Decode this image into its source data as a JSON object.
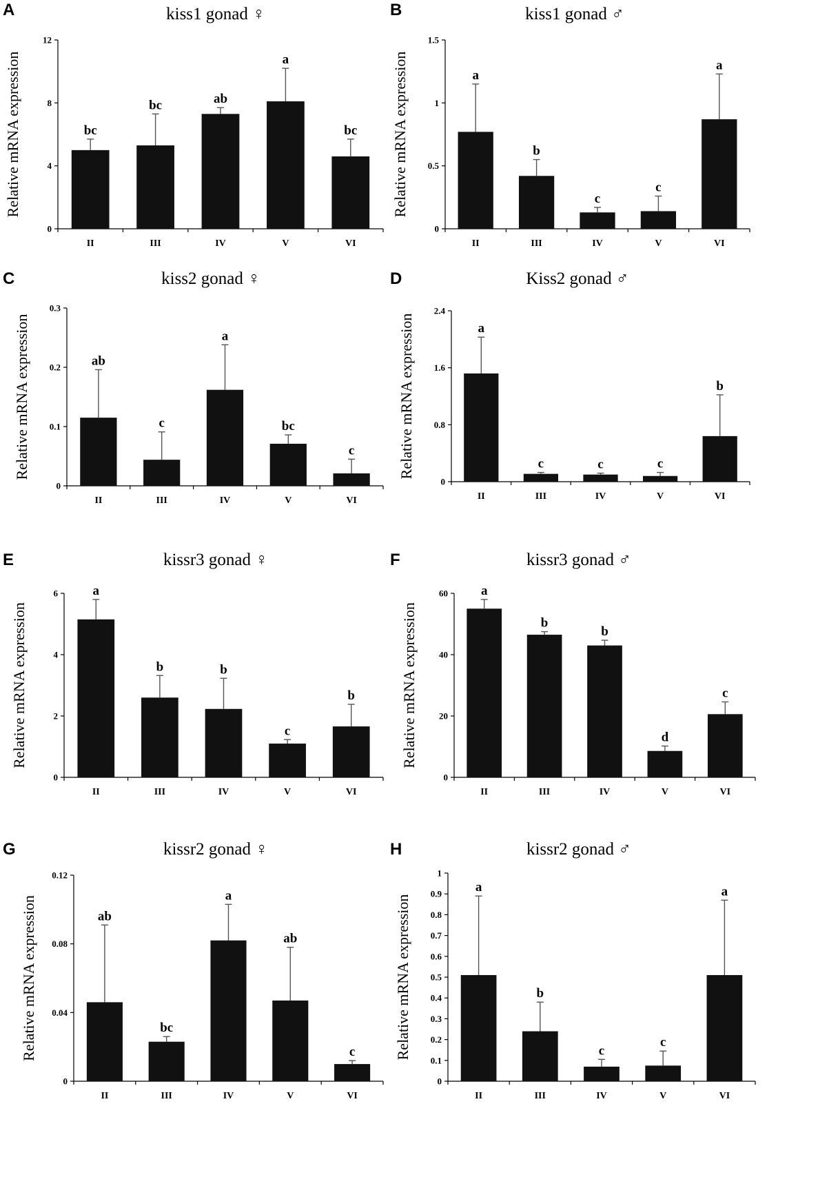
{
  "y_axis_label": "Relative mRNA expression",
  "colors": {
    "bar": "#111111",
    "error": "#555555",
    "axis": "#000000"
  },
  "chart_data": [
    {
      "panel": "A",
      "type": "bar",
      "title": "kiss1 gonad ♀",
      "ylabel": "Relative mRNA expression",
      "categories": [
        "II",
        "III",
        "IV",
        "V",
        "VI"
      ],
      "values": [
        5.0,
        5.3,
        7.3,
        8.1,
        4.6
      ],
      "errors": [
        0.7,
        2.0,
        0.4,
        2.1,
        1.1
      ],
      "labels": [
        "bc",
        "bc",
        "ab",
        "a",
        "bc"
      ],
      "ylim": [
        0,
        12
      ],
      "yticks": [
        "0",
        "4",
        "8",
        "12"
      ]
    },
    {
      "panel": "B",
      "type": "bar",
      "title": "kiss1 gonad ♂",
      "ylabel": "Relative mRNA expression",
      "categories": [
        "II",
        "III",
        "IV",
        "V",
        "VI"
      ],
      "values": [
        0.77,
        0.42,
        0.13,
        0.14,
        0.87
      ],
      "errors": [
        0.38,
        0.13,
        0.04,
        0.12,
        0.36
      ],
      "labels": [
        "a",
        "b",
        "c",
        "c",
        "a"
      ],
      "ylim": [
        0,
        1.5
      ],
      "yticks": [
        "0",
        "0.5",
        "1",
        "1.5"
      ]
    },
    {
      "panel": "C",
      "type": "bar",
      "title": "kiss2 gonad ♀",
      "ylabel": "Relative mRNA expression",
      "categories": [
        "II",
        "III",
        "IV",
        "V",
        "VI"
      ],
      "values": [
        0.115,
        0.044,
        0.162,
        0.071,
        0.021
      ],
      "errors": [
        0.081,
        0.047,
        0.076,
        0.015,
        0.024
      ],
      "labels": [
        "ab",
        "c",
        "a",
        "bc",
        "c"
      ],
      "ylim": [
        0,
        0.3
      ],
      "yticks": [
        "0",
        "0.1",
        "0.2",
        "0.3"
      ]
    },
    {
      "panel": "D",
      "type": "bar",
      "title": "Kiss2 gonad ♂",
      "ylabel": "Relative mRNA expression",
      "categories": [
        "II",
        "III",
        "IV",
        "V",
        "VI"
      ],
      "values": [
        1.52,
        0.11,
        0.1,
        0.08,
        0.64
      ],
      "errors": [
        0.51,
        0.02,
        0.02,
        0.05,
        0.58
      ],
      "labels": [
        "a",
        "c",
        "c",
        "c",
        "b"
      ],
      "ylim": [
        0,
        2.4
      ],
      "yticks": [
        "0",
        "0.8",
        "1.6",
        "2.4"
      ]
    },
    {
      "panel": "E",
      "type": "bar",
      "title": "kissr3 gonad ♀",
      "ylabel": "Relative mRNA expression",
      "categories": [
        "II",
        "III",
        "IV",
        "V",
        "VI"
      ],
      "values": [
        5.15,
        2.6,
        2.23,
        1.1,
        1.66
      ],
      "errors": [
        0.65,
        0.72,
        1.0,
        0.13,
        0.72
      ],
      "labels": [
        "a",
        "b",
        "b",
        "c",
        "b"
      ],
      "ylim": [
        0,
        6
      ],
      "yticks": [
        "0",
        "2",
        "4",
        "6"
      ]
    },
    {
      "panel": "F",
      "type": "bar",
      "title": "kissr3 gonad ♂",
      "ylabel": "Relative mRNA expression",
      "categories": [
        "II",
        "III",
        "IV",
        "V",
        "VI"
      ],
      "values": [
        55.0,
        46.5,
        43.0,
        8.6,
        20.6
      ],
      "errors": [
        3.0,
        1.0,
        1.7,
        1.6,
        4.0
      ],
      "labels": [
        "a",
        "b",
        "b",
        "d",
        "c"
      ],
      "ylim": [
        0,
        60
      ],
      "yticks": [
        "0",
        "20",
        "40",
        "60"
      ]
    },
    {
      "panel": "G",
      "type": "bar",
      "title": "kissr2 gonad ♀",
      "ylabel": "Relative mRNA expression",
      "categories": [
        "II",
        "III",
        "IV",
        "V",
        "VI"
      ],
      "values": [
        0.046,
        0.023,
        0.082,
        0.047,
        0.01
      ],
      "errors": [
        0.045,
        0.003,
        0.021,
        0.031,
        0.002
      ],
      "labels": [
        "ab",
        "bc",
        "a",
        "ab",
        "c"
      ],
      "ylim": [
        0,
        0.12
      ],
      "yticks": [
        "0",
        "0.04",
        "0.08",
        "0.12"
      ]
    },
    {
      "panel": "H",
      "type": "bar",
      "title": "kissr2 gonad ♂",
      "ylabel": "Relative mRNA expression",
      "categories": [
        "II",
        "III",
        "IV",
        "V",
        "VI"
      ],
      "values": [
        0.51,
        0.24,
        0.07,
        0.075,
        0.51
      ],
      "errors": [
        0.38,
        0.14,
        0.035,
        0.07,
        0.36
      ],
      "labels": [
        "a",
        "b",
        "c",
        "c",
        "a"
      ],
      "ylim": [
        0,
        1
      ],
      "yticks": [
        "0",
        "0.1",
        "0.2",
        "0.3",
        "0.4",
        "0.5",
        "0.6",
        "0.7",
        "0.8",
        "0.9",
        "1"
      ]
    }
  ]
}
